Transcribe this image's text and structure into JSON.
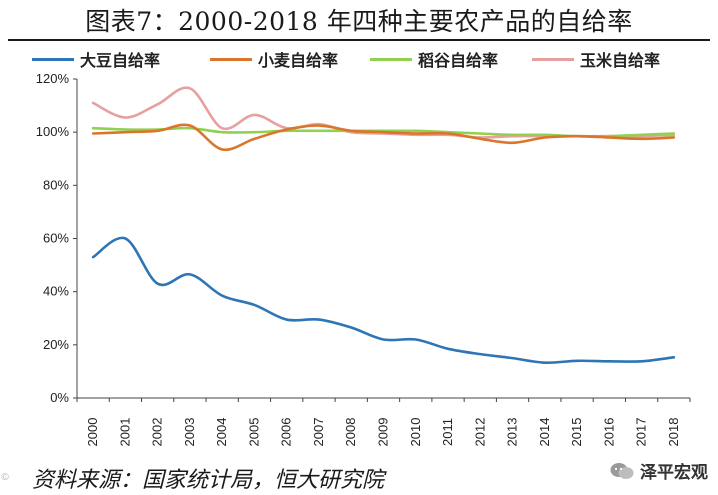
{
  "title": "图表7：2000-2018 年四种主要农产品的自给率",
  "source": "资料来源：国家统计局，恒大研究院",
  "watermark": "©",
  "brand": "泽平宏观",
  "chart_data": {
    "type": "line",
    "title": "图表7：2000-2018 年四种主要农产品的自给率",
    "xlabel": "",
    "ylabel": "",
    "ylim": [
      0,
      120
    ],
    "y_ticks": [
      "0%",
      "20%",
      "40%",
      "60%",
      "80%",
      "100%",
      "120%"
    ],
    "y_tick_values": [
      0,
      20,
      40,
      60,
      80,
      100,
      120
    ],
    "categories": [
      "2000",
      "2001",
      "2002",
      "2003",
      "2004",
      "2005",
      "2006",
      "2007",
      "2008",
      "2009",
      "2010",
      "2011",
      "2012",
      "2013",
      "2014",
      "2015",
      "2016",
      "2017",
      "2018"
    ],
    "grid": false,
    "legend_position": "top",
    "series": [
      {
        "name": "大豆自给率",
        "color": "#2e75b6",
        "values": [
          53,
          60,
          43,
          46.5,
          38.5,
          35,
          29.5,
          29.5,
          26.5,
          22,
          22,
          18.5,
          16.5,
          15,
          13.3,
          14,
          13.8,
          13.8,
          15.3
        ]
      },
      {
        "name": "小麦自给率",
        "color": "#d9762b",
        "values": [
          99.5,
          100,
          100.5,
          102.5,
          93.5,
          97.5,
          101,
          102.5,
          100.5,
          100,
          99.5,
          99.5,
          97.5,
          96,
          98,
          98.5,
          98,
          97.5,
          98
        ]
      },
      {
        "name": "稻谷自给率",
        "color": "#92d050",
        "values": [
          101.5,
          101,
          101,
          101.5,
          100,
          100,
          100.5,
          100.5,
          100.5,
          100.5,
          100.5,
          100,
          99.5,
          99,
          99,
          98.5,
          98.5,
          99,
          99.5
        ]
      },
      {
        "name": "玉米自给率",
        "color": "#e6a0a0",
        "values": [
          111,
          105.5,
          110.5,
          116.5,
          101.5,
          106.5,
          101.5,
          103,
          100,
          99.5,
          99,
          99,
          98,
          98.5,
          98.5,
          98.5,
          98.5,
          98.5,
          99
        ]
      }
    ]
  }
}
